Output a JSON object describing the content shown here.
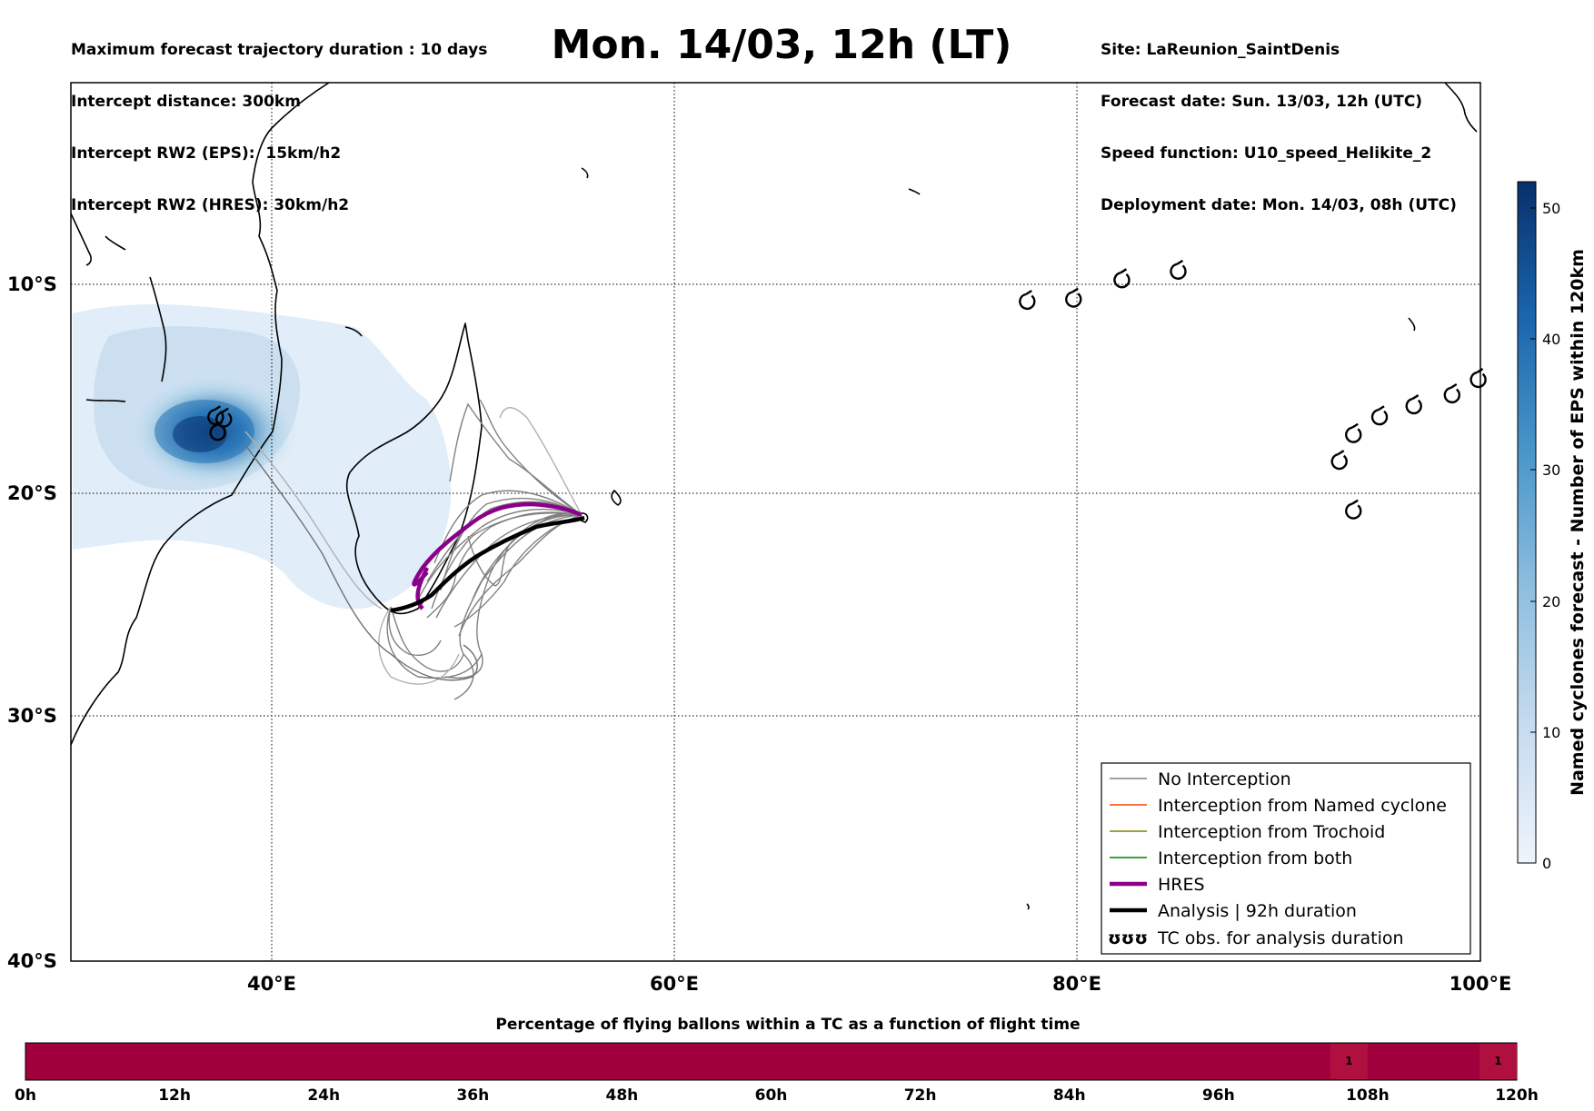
{
  "header_left": [
    "Maximum forecast trajectory duration : 10 days",
    "Intercept distance: 300km",
    "Intercept RW2 (EPS):  15km/h2",
    "Intercept RW2 (HRES): 30km/h2"
  ],
  "title": "Mon. 14/03, 12h (LT)",
  "header_right": [
    "Site: LaReunion_SaintDenis",
    "Forecast date: Sun. 13/03, 12h (UTC)",
    "Speed function: U10_speed_Helikite_2",
    "Deployment date: Mon. 14/03, 08h (UTC)"
  ],
  "map": {
    "lat_labels": [
      "10°S",
      "20°S",
      "30°S",
      "40°S"
    ],
    "lon_labels": [
      "40°E",
      "60°E",
      "80°E",
      "100°E"
    ],
    "lon_range": [
      30,
      100
    ],
    "lat_range": [
      -40,
      -2
    ]
  },
  "colorbar": {
    "label": "Named cyclones forecast - Number of EPS within 120km",
    "ticks": [
      "0",
      "10",
      "20",
      "30",
      "40",
      "50"
    ],
    "range": [
      0,
      52
    ],
    "color_low": "#e8f1fa",
    "color_high": "#08306b"
  },
  "legend": [
    {
      "label": "No Interception",
      "color": "#808080",
      "style": "thin"
    },
    {
      "label": "Interception from Named cyclone",
      "color": "#ff4500",
      "style": "thin"
    },
    {
      "label": "Interception from Trochoid",
      "color": "#808000",
      "style": "thin"
    },
    {
      "label": "Interception from both",
      "color": "#008000",
      "style": "thin"
    },
    {
      "label": "HRES",
      "color": "#8b008b",
      "style": "thick"
    },
    {
      "label": "Analysis | 92h duration",
      "color": "#000000",
      "style": "thick"
    },
    {
      "label": "TC obs. for analysis duration",
      "color": "#000000",
      "style": "symbol",
      "symbol": "ʊʊʊ"
    }
  ],
  "timeline": {
    "title": "Percentage of flying ballons within a TC as a function of flight time",
    "ticks": [
      "0h",
      "12h",
      "24h",
      "36h",
      "48h",
      "60h",
      "72h",
      "84h",
      "96h",
      "108h",
      "120h"
    ],
    "bar_color": "#a0003c",
    "highlight_color": "#b0103f",
    "values": [
      {
        "hour_start": 105,
        "hour_end": 108,
        "value": "1"
      },
      {
        "hour_start": 117,
        "hour_end": 120,
        "value": "1"
      }
    ]
  },
  "tc_obs_east_africa": [
    {
      "lon": 37.2,
      "lat": -17.6
    },
    {
      "lon": 37.6,
      "lat": -17.7
    },
    {
      "lon": 37.3,
      "lat": -18.3
    }
  ],
  "tc_obs_north": [
    {
      "lon": 77.5,
      "lat": -12.3
    },
    {
      "lon": 79.8,
      "lat": -12.2
    },
    {
      "lon": 82.2,
      "lat": -11.3
    },
    {
      "lon": 85.0,
      "lat": -10.9
    }
  ],
  "tc_obs_east": [
    {
      "lon": 93.0,
      "lat": -19.6
    },
    {
      "lon": 93.7,
      "lat": -18.4
    },
    {
      "lon": 95.0,
      "lat": -17.6
    },
    {
      "lon": 96.7,
      "lat": -17.1
    },
    {
      "lon": 98.6,
      "lat": -16.6
    },
    {
      "lon": 99.9,
      "lat": -15.9
    },
    {
      "lon": 93.7,
      "lat": -21.8
    }
  ]
}
